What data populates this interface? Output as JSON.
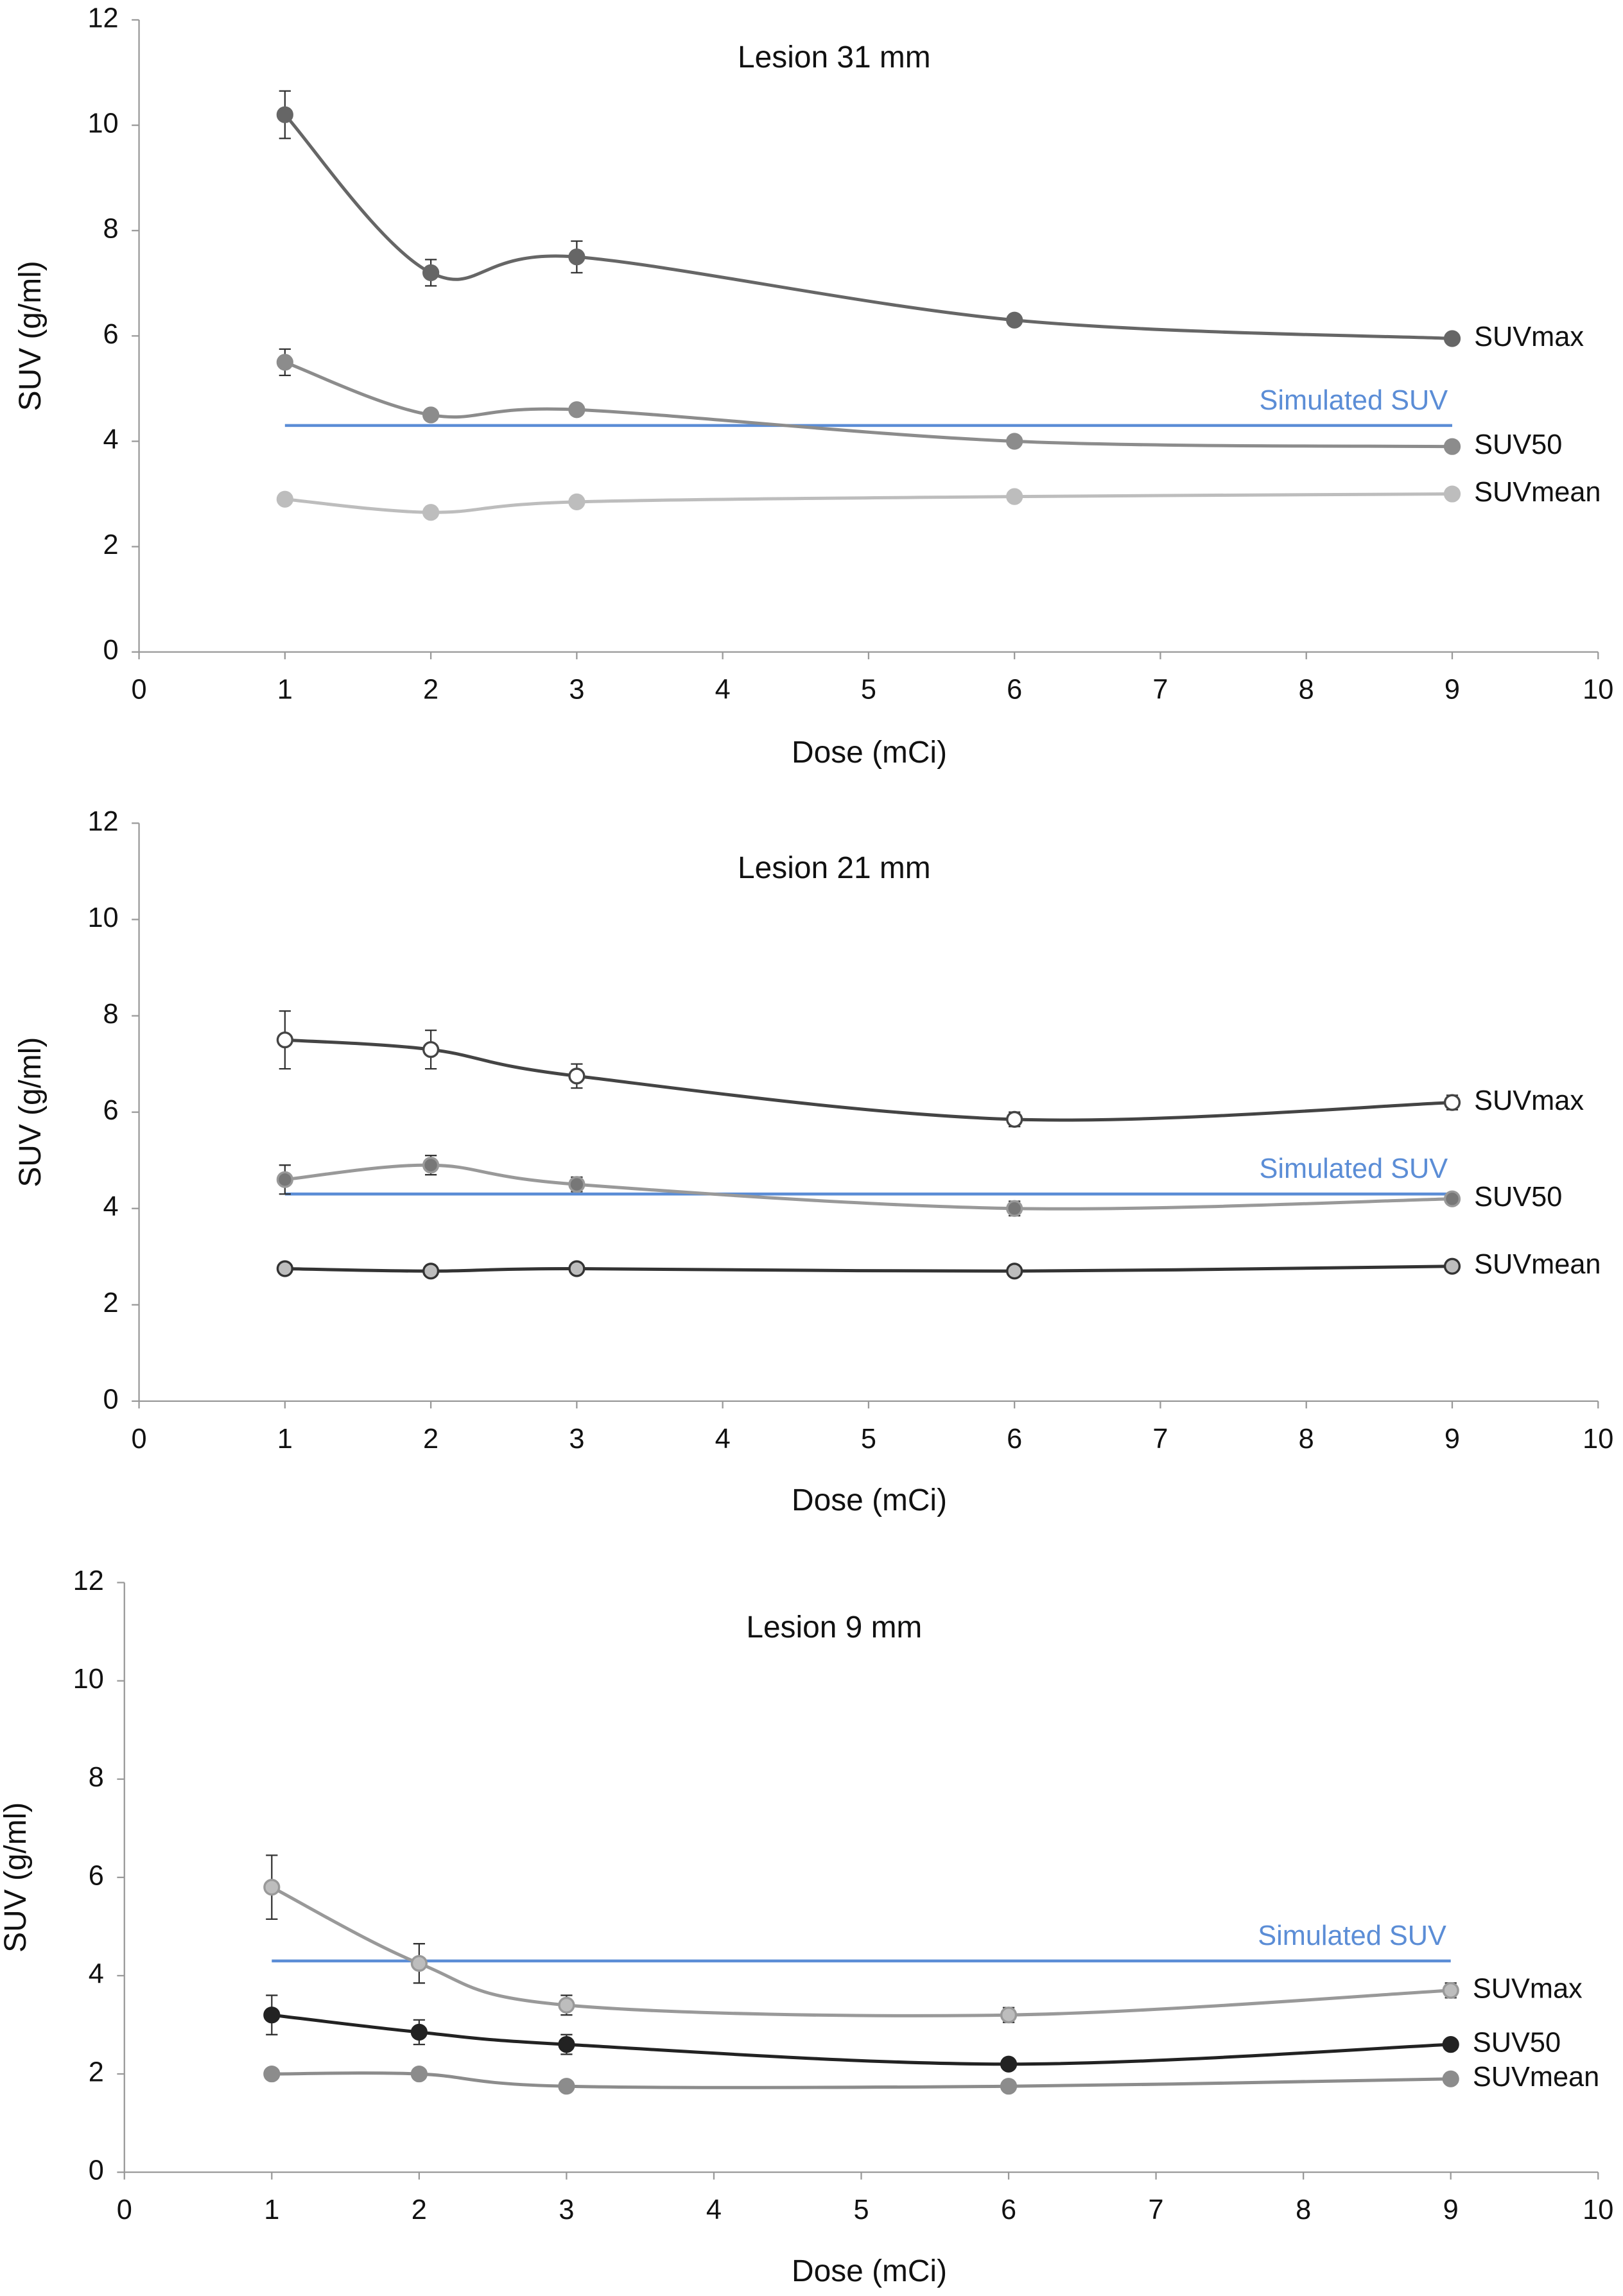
{
  "chart_data": [
    {
      "type": "line",
      "title": "Lesion 31 mm",
      "x_label": "Dose (mCi)",
      "y_label": "SUV (g/ml)",
      "x": [
        1,
        2,
        3,
        6,
        9
      ],
      "xlim": [
        0,
        10
      ],
      "xticks": [
        0,
        1,
        2,
        3,
        4,
        5,
        6,
        7,
        8,
        9,
        10
      ],
      "ylim": [
        0,
        12
      ],
      "yticks": [
        0,
        2,
        4,
        6,
        8,
        10,
        12
      ],
      "series": [
        {
          "name": "SUVmax",
          "color": "#666666",
          "values": [
            10.2,
            7.2,
            7.5,
            6.3,
            5.95
          ],
          "errors": [
            0.45,
            0.25,
            0.3,
            0.1,
            0.08
          ]
        },
        {
          "name": "SUV50",
          "color": "#8c8c8c",
          "values": [
            5.5,
            4.5,
            4.6,
            4.0,
            3.9
          ],
          "errors": [
            0.25,
            0.1,
            0.1,
            0.05,
            0.05
          ]
        },
        {
          "name": "SUVmean",
          "color": "#bdbdbd",
          "values": [
            2.9,
            2.65,
            2.85,
            2.95,
            3.0
          ],
          "errors": [
            0.05,
            0.05,
            0.05,
            0.05,
            0.05
          ]
        }
      ],
      "reference": {
        "label": "Simulated SUV",
        "value": 4.3,
        "color": "#5b8dd6"
      }
    },
    {
      "type": "line",
      "title": "Lesion 21 mm",
      "x_label": "Dose (mCi)",
      "y_label": "SUV (g/ml)",
      "x": [
        1,
        2,
        3,
        6,
        9
      ],
      "xlim": [
        0,
        10
      ],
      "xticks": [
        0,
        1,
        2,
        3,
        4,
        5,
        6,
        7,
        8,
        9,
        10
      ],
      "ylim": [
        0,
        12
      ],
      "yticks": [
        0,
        2,
        4,
        6,
        8,
        10,
        12
      ],
      "series": [
        {
          "name": "SUVmax",
          "color": "#444444",
          "marker_color": "#ffffff",
          "values": [
            7.5,
            7.3,
            6.75,
            5.85,
            6.2
          ],
          "errors": [
            0.6,
            0.4,
            0.25,
            0.15,
            0.15
          ]
        },
        {
          "name": "SUV50",
          "color": "#999999",
          "marker_color": "#777777",
          "values": [
            4.6,
            4.9,
            4.5,
            4.0,
            4.2
          ],
          "errors": [
            0.3,
            0.2,
            0.15,
            0.15,
            0.05
          ]
        },
        {
          "name": "SUVmean",
          "color": "#333333",
          "marker_color": "#bdbdbd",
          "values": [
            2.75,
            2.7,
            2.75,
            2.7,
            2.8
          ],
          "errors": [
            0.1,
            0.05,
            0.05,
            0.05,
            0.05
          ]
        }
      ],
      "reference": {
        "label": "Simulated SUV",
        "value": 4.3,
        "color": "#5b8dd6"
      }
    },
    {
      "type": "line",
      "title": "Lesion 9 mm",
      "x_label": "Dose (mCi)",
      "y_label": "SUV (g/ml)",
      "x": [
        1,
        2,
        3,
        6,
        9
      ],
      "xlim": [
        0,
        10
      ],
      "xticks": [
        0,
        1,
        2,
        3,
        4,
        5,
        6,
        7,
        8,
        9,
        10
      ],
      "ylim": [
        0,
        12
      ],
      "yticks": [
        0,
        2,
        4,
        6,
        8,
        10,
        12
      ],
      "series": [
        {
          "name": "SUVmax",
          "color": "#999999",
          "marker_color": "#bdbdbd",
          "values": [
            5.8,
            4.25,
            3.4,
            3.2,
            3.7
          ],
          "errors": [
            0.65,
            0.4,
            0.2,
            0.15,
            0.15
          ]
        },
        {
          "name": "SUV50",
          "color": "#222222",
          "values": [
            3.2,
            2.85,
            2.6,
            2.2,
            2.6
          ],
          "errors": [
            0.4,
            0.25,
            0.2,
            0.1,
            0.1
          ]
        },
        {
          "name": "SUVmean",
          "color": "#8c8c8c",
          "values": [
            2.0,
            2.0,
            1.75,
            1.75,
            1.9
          ],
          "errors": [
            0.1,
            0.08,
            0.05,
            0.05,
            0.05
          ]
        }
      ],
      "reference": {
        "label": "Simulated SUV",
        "value": 4.3,
        "color": "#5b8dd6"
      }
    }
  ]
}
